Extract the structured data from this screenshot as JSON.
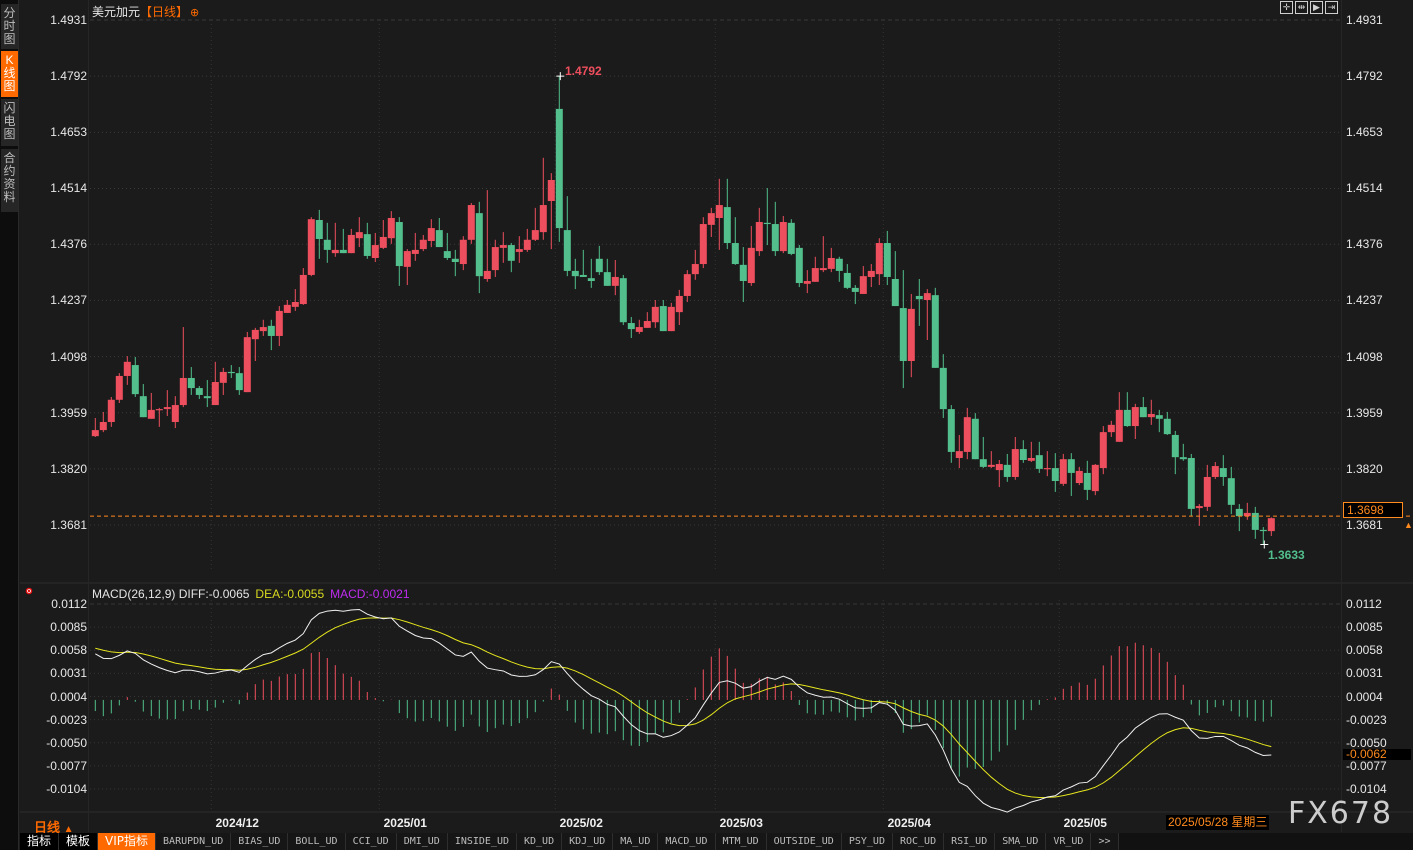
{
  "sidebar": {
    "tabs": [
      {
        "label": "分时图",
        "active": false
      },
      {
        "label": "K线图",
        "active": true
      },
      {
        "label": "闪电图",
        "active": false
      },
      {
        "label": "合约资料",
        "active": false
      }
    ]
  },
  "header": {
    "instrument": "美元加元",
    "period": "【日线】",
    "add_icon": "circle-plus-icon",
    "toolbar_icons": [
      "crosshair-icon",
      "zoom-range-icon",
      "play-forward-icon",
      "jump-to-end-icon"
    ]
  },
  "colors": {
    "up": "#ee4f5e",
    "down": "#52bf8c",
    "accent": "#ff6a00",
    "price_line": "#ff8a1e",
    "diff": "#f0f0f0",
    "dea": "#e6e61e",
    "macd": "#c02cf0"
  },
  "chart_data": {
    "type": "candlestick",
    "title": "美元加元",
    "period": "日线",
    "ylim": [
      1.36,
      1.4931
    ],
    "grid": true,
    "y_ticks": [
      "1.4931",
      "1.4792",
      "1.4653",
      "1.4514",
      "1.4376",
      "1.4237",
      "1.4098",
      "1.3959",
      "1.3820",
      "1.3681"
    ],
    "x_ticks": [
      {
        "label": "2024/12",
        "at_candle": 15
      },
      {
        "label": "2025/01",
        "at_candle": 36
      },
      {
        "label": "2025/02",
        "at_candle": 58
      },
      {
        "label": "2025/03",
        "at_candle": 78
      },
      {
        "label": "2025/04",
        "at_candle": 99
      },
      {
        "label": "2025/05",
        "at_candle": 121
      }
    ],
    "ohlc_fields": [
      "open",
      "high",
      "low",
      "close"
    ],
    "ohlc": [
      [
        1.3901,
        1.3946,
        1.3899,
        1.3916
      ],
      [
        1.3916,
        1.3961,
        1.3911,
        1.3936
      ],
      [
        1.3936,
        1.3998,
        1.3924,
        1.3991
      ],
      [
        1.3991,
        1.4057,
        1.3983,
        1.405
      ],
      [
        1.405,
        1.4099,
        1.4028,
        1.4085
      ],
      [
        1.4077,
        1.4097,
        1.3998,
        1.4005
      ],
      [
        1.4,
        1.403,
        1.3948,
        1.3948
      ],
      [
        1.3944,
        1.4008,
        1.3944,
        1.3966
      ],
      [
        1.3966,
        1.3971,
        1.3924,
        1.3968
      ],
      [
        1.3968,
        1.4015,
        1.3951,
        1.3973
      ],
      [
        1.3936,
        1.4,
        1.3921,
        1.3978
      ],
      [
        1.3978,
        1.4171,
        1.3973,
        1.4045
      ],
      [
        1.4045,
        1.4072,
        1.4003,
        1.402
      ],
      [
        1.402,
        1.4025,
        1.3993,
        1.4003
      ],
      [
        1.4,
        1.404,
        1.3973,
        1.3995
      ],
      [
        1.3978,
        1.4085,
        1.3978,
        1.4035
      ],
      [
        1.4033,
        1.407,
        1.4003,
        1.406
      ],
      [
        1.406,
        1.4077,
        1.4045,
        1.4057
      ],
      [
        1.4057,
        1.4072,
        1.4003,
        1.4015
      ],
      [
        1.401,
        1.4159,
        1.401,
        1.4146
      ],
      [
        1.4141,
        1.4169,
        1.4087,
        1.4164
      ],
      [
        1.4161,
        1.4189,
        1.4149,
        1.4171
      ],
      [
        1.4174,
        1.4189,
        1.4114,
        1.4149
      ],
      [
        1.4149,
        1.4223,
        1.4124,
        1.4211
      ],
      [
        1.4206,
        1.4238,
        1.4206,
        1.4226
      ],
      [
        1.4221,
        1.4265,
        1.4211,
        1.4233
      ],
      [
        1.4228,
        1.4317,
        1.4226,
        1.43
      ],
      [
        1.43,
        1.4443,
        1.4297,
        1.4438
      ],
      [
        1.4436,
        1.4461,
        1.434,
        1.4389
      ],
      [
        1.4387,
        1.4429,
        1.433,
        1.4362
      ],
      [
        1.4354,
        1.4429,
        1.4345,
        1.4362
      ],
      [
        1.4362,
        1.4414,
        1.4354,
        1.4354
      ],
      [
        1.4354,
        1.4414,
        1.4354,
        1.4399
      ],
      [
        1.4391,
        1.4443,
        1.4369,
        1.4406
      ],
      [
        1.4401,
        1.4429,
        1.434,
        1.4347
      ],
      [
        1.4342,
        1.4404,
        1.4332,
        1.4374
      ],
      [
        1.4367,
        1.4436,
        1.4364,
        1.4394
      ],
      [
        1.4391,
        1.4458,
        1.4377,
        1.4441
      ],
      [
        1.4431,
        1.4443,
        1.4273,
        1.4322
      ],
      [
        1.432,
        1.4364,
        1.4275,
        1.4359
      ],
      [
        1.4352,
        1.4404,
        1.4335,
        1.4362
      ],
      [
        1.4364,
        1.4399,
        1.4359,
        1.4387
      ],
      [
        1.4384,
        1.4438,
        1.4369,
        1.4416
      ],
      [
        1.4411,
        1.4441,
        1.4369,
        1.4369
      ],
      [
        1.4359,
        1.4404,
        1.4337,
        1.4342
      ],
      [
        1.434,
        1.4362,
        1.4297,
        1.4332
      ],
      [
        1.4327,
        1.4396,
        1.4312,
        1.4387
      ],
      [
        1.4387,
        1.4478,
        1.4377,
        1.4473
      ],
      [
        1.4453,
        1.4481,
        1.4255,
        1.4297
      ],
      [
        1.429,
        1.451,
        1.4283,
        1.431
      ],
      [
        1.4312,
        1.4387,
        1.4295,
        1.4369
      ],
      [
        1.4367,
        1.4406,
        1.433,
        1.4374
      ],
      [
        1.4374,
        1.4379,
        1.4307,
        1.4335
      ],
      [
        1.4357,
        1.4396,
        1.433,
        1.4364
      ],
      [
        1.4362,
        1.4414,
        1.4357,
        1.4387
      ],
      [
        1.4387,
        1.4466,
        1.4384,
        1.4411
      ],
      [
        1.4406,
        1.459,
        1.4387,
        1.4473
      ],
      [
        1.4483,
        1.4552,
        1.4364,
        1.4535
      ],
      [
        1.4711,
        1.4792,
        1.4382,
        1.4416
      ],
      [
        1.4411,
        1.4495,
        1.4297,
        1.431
      ],
      [
        1.431,
        1.434,
        1.4265,
        1.4297
      ],
      [
        1.43,
        1.4362,
        1.4295,
        1.4295
      ],
      [
        1.4292,
        1.434,
        1.4268,
        1.4285
      ],
      [
        1.434,
        1.4372,
        1.43,
        1.4307
      ],
      [
        1.4307,
        1.434,
        1.4273,
        1.4273
      ],
      [
        1.4273,
        1.4337,
        1.425,
        1.4295
      ],
      [
        1.4292,
        1.43,
        1.4176,
        1.4183
      ],
      [
        1.4181,
        1.4196,
        1.4144,
        1.4166
      ],
      [
        1.4159,
        1.4189,
        1.4154,
        1.4171
      ],
      [
        1.4169,
        1.4208,
        1.4169,
        1.4186
      ],
      [
        1.4183,
        1.4238,
        1.4169,
        1.4221
      ],
      [
        1.4223,
        1.4238,
        1.4161,
        1.4161
      ],
      [
        1.4161,
        1.4231,
        1.4161,
        1.4221
      ],
      [
        1.4208,
        1.4263,
        1.4176,
        1.4248
      ],
      [
        1.4248,
        1.4312,
        1.4233,
        1.4302
      ],
      [
        1.4302,
        1.4362,
        1.4288,
        1.4327
      ],
      [
        1.4327,
        1.4443,
        1.4317,
        1.4426
      ],
      [
        1.4424,
        1.4466,
        1.4394,
        1.4453
      ],
      [
        1.4441,
        1.4538,
        1.4362,
        1.4473
      ],
      [
        1.4468,
        1.4538,
        1.4364,
        1.4379
      ],
      [
        1.4379,
        1.4443,
        1.4325,
        1.4327
      ],
      [
        1.4325,
        1.4369,
        1.4233,
        1.4285
      ],
      [
        1.428,
        1.4421,
        1.4273,
        1.4367
      ],
      [
        1.4359,
        1.4466,
        1.4347,
        1.4431
      ],
      [
        1.4429,
        1.4515,
        1.4374,
        1.4426
      ],
      [
        1.4426,
        1.4481,
        1.4347,
        1.4359
      ],
      [
        1.4359,
        1.4446,
        1.4354,
        1.4431
      ],
      [
        1.4429,
        1.4438,
        1.4349,
        1.4352
      ],
      [
        1.4367,
        1.4374,
        1.427,
        1.428
      ],
      [
        1.4278,
        1.4312,
        1.4255,
        1.4285
      ],
      [
        1.4283,
        1.4345,
        1.4283,
        1.4317
      ],
      [
        1.4312,
        1.4396,
        1.4307,
        1.4317
      ],
      [
        1.4315,
        1.4367,
        1.4307,
        1.4342
      ],
      [
        1.434,
        1.4345,
        1.4283,
        1.431
      ],
      [
        1.4305,
        1.4327,
        1.4265,
        1.4268
      ],
      [
        1.4268,
        1.4275,
        1.4228,
        1.4258
      ],
      [
        1.4253,
        1.4322,
        1.4253,
        1.4297
      ],
      [
        1.4295,
        1.4327,
        1.427,
        1.431
      ],
      [
        1.4302,
        1.4391,
        1.4275,
        1.4379
      ],
      [
        1.4379,
        1.4409,
        1.4275,
        1.4295
      ],
      [
        1.429,
        1.4359,
        1.4223,
        1.4223
      ],
      [
        1.4218,
        1.4312,
        1.402,
        1.4087
      ],
      [
        1.4087,
        1.4253,
        1.4047,
        1.4216
      ],
      [
        1.4248,
        1.429,
        1.4174,
        1.424
      ],
      [
        1.4238,
        1.4265,
        1.4139,
        1.4255
      ],
      [
        1.425,
        1.4268,
        1.407,
        1.407
      ],
      [
        1.407,
        1.4104,
        1.3946,
        1.3968
      ],
      [
        1.3968,
        1.3978,
        1.3835,
        1.3862
      ],
      [
        1.3847,
        1.3904,
        1.3822,
        1.3864
      ],
      [
        1.3862,
        1.3971,
        1.3844,
        1.3948
      ],
      [
        1.3944,
        1.3958,
        1.3844,
        1.3844
      ],
      [
        1.3844,
        1.3899,
        1.3822,
        1.3825
      ],
      [
        1.3825,
        1.3864,
        1.3822,
        1.383
      ],
      [
        1.3817,
        1.3842,
        1.3775,
        1.3832
      ],
      [
        1.383,
        1.3857,
        1.3788,
        1.38
      ],
      [
        1.38,
        1.3899,
        1.3793,
        1.3869
      ],
      [
        1.3869,
        1.3891,
        1.3835,
        1.3842
      ],
      [
        1.384,
        1.3887,
        1.3837,
        1.3847
      ],
      [
        1.3854,
        1.3887,
        1.381,
        1.382
      ],
      [
        1.382,
        1.3864,
        1.3802,
        1.3822
      ],
      [
        1.3822,
        1.3859,
        1.3763,
        1.379
      ],
      [
        1.3783,
        1.3857,
        1.3778,
        1.3844
      ],
      [
        1.3844,
        1.3859,
        1.3753,
        1.381
      ],
      [
        1.3785,
        1.3825,
        1.378,
        1.3815
      ],
      [
        1.381,
        1.384,
        1.3743,
        1.3768
      ],
      [
        1.3765,
        1.3832,
        1.3755,
        1.383
      ],
      [
        1.3822,
        1.3926,
        1.3807,
        1.3911
      ],
      [
        1.3911,
        1.3939,
        1.3899,
        1.3929
      ],
      [
        1.3887,
        1.401,
        1.3887,
        1.3966
      ],
      [
        1.3966,
        1.401,
        1.3924,
        1.3926
      ],
      [
        1.3926,
        1.3981,
        1.3894,
        1.3973
      ],
      [
        1.3973,
        1.3998,
        1.3948,
        1.3948
      ],
      [
        1.3948,
        1.3991,
        1.3929,
        1.3956
      ],
      [
        1.3953,
        1.3966,
        1.3911,
        1.3944
      ],
      [
        1.3944,
        1.3961,
        1.3904,
        1.3906
      ],
      [
        1.3904,
        1.3914,
        1.3807,
        1.3849
      ],
      [
        1.3849,
        1.3882,
        1.384,
        1.3844
      ],
      [
        1.3847,
        1.3857,
        1.3703,
        1.3721
      ],
      [
        1.3723,
        1.3733,
        1.3679,
        1.3728
      ],
      [
        1.3726,
        1.383,
        1.3716,
        1.38
      ],
      [
        1.38,
        1.3837,
        1.3795,
        1.3827
      ],
      [
        1.3822,
        1.3854,
        1.3778,
        1.38
      ],
      [
        1.3797,
        1.3825,
        1.3708,
        1.3731
      ],
      [
        1.3721,
        1.3733,
        1.3666,
        1.3703
      ],
      [
        1.3703,
        1.3736,
        1.3694,
        1.3711
      ],
      [
        1.3711,
        1.3726,
        1.3647,
        1.3669
      ],
      [
        1.3669,
        1.3676,
        1.3633,
        1.3666
      ],
      [
        1.3666,
        1.37,
        1.3654,
        1.3698
      ]
    ],
    "max_label": "1.4792",
    "min_label": "1.3633",
    "last_price": "1.3698",
    "indicator": {
      "name": "MACD(26,12,9)",
      "params": {
        "long": 26,
        "short": 12,
        "signal": 9
      },
      "diff_label": "DIFF:-0.0065",
      "dea_label": "DEA:-0.0055",
      "macd_label": "MACD:-0.0021",
      "current_value": "-0.0062",
      "ylim": [
        -0.0104,
        0.0112
      ],
      "y_ticks": [
        "0.0112",
        "0.0085",
        "0.0058",
        "0.0031",
        "0.0004",
        "-0.0023",
        "-0.0050",
        "-0.0077",
        "-0.0104"
      ]
    }
  },
  "footer": {
    "period_label": "日线",
    "period_arrow": "▲",
    "date_readout": "2025/05/28 星期三",
    "watermark": "FX678",
    "tabs": [
      "指标",
      "模板",
      "VIP指标",
      "BARUPDN_UD",
      "BIAS_UD",
      "BOLL_UD",
      "CCI_UD",
      "DMI_UD",
      "INSIDE_UD",
      "KD_UD",
      "KDJ_UD",
      "MA_UD",
      "MACD_UD",
      "MTM_UD",
      "OUTSIDE_UD",
      "PSY_UD",
      "ROC_UD",
      "RSI_UD",
      "SMA_UD",
      "VR_UD",
      ">>"
    ],
    "active_tab": "VIP指标"
  }
}
